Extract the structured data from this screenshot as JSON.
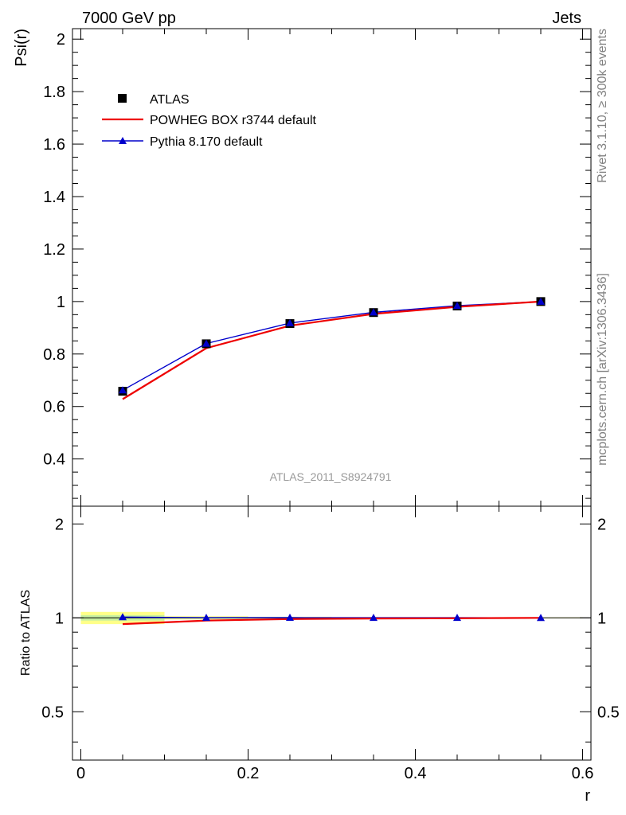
{
  "header": {
    "left": "7000 GeV pp",
    "right": "Jets"
  },
  "side_labels": {
    "top": "Rivet 3.1.10, ≥ 300k events",
    "bottom": "mcplots.cern.ch [arXiv:1306.3436]"
  },
  "watermark": "ATLAS_2011_S8924791",
  "colors": {
    "atlas": "#000000",
    "powheg": "#ee0000",
    "pythia": "#0000cc",
    "band_outer": "#ffff88",
    "band_inner": "#c8f0a0",
    "watermark": "#999999",
    "side_label": "#808080"
  },
  "chart_data": [
    {
      "type": "line",
      "ylabel": "Psi(r)",
      "xlim": [
        -0.01,
        0.61
      ],
      "ylim": [
        0.22,
        2.04
      ],
      "yticks": [
        0.4,
        0.6,
        0.8,
        1,
        1.2,
        1.4,
        1.6,
        1.8,
        2
      ],
      "ytick_labels": [
        "0.4",
        "0.6",
        "0.8",
        "1",
        "1.2",
        "1.4",
        "1.6",
        "1.8",
        "2"
      ],
      "legend_position": "top-left",
      "series": [
        {
          "name": "ATLAS",
          "marker": "square",
          "x": [
            0.05,
            0.15,
            0.25,
            0.35,
            0.45,
            0.55
          ],
          "y": [
            0.658,
            0.839,
            0.916,
            0.958,
            0.983,
            1.0
          ]
        },
        {
          "name": "POWHEG BOX r3744 default",
          "marker": "none",
          "x": [
            0.05,
            0.15,
            0.25,
            0.35,
            0.45,
            0.55
          ],
          "y": [
            0.628,
            0.822,
            0.908,
            0.953,
            0.98,
            1.0
          ]
        },
        {
          "name": "Pythia 8.170 default",
          "marker": "triangle",
          "x": [
            0.05,
            0.15,
            0.25,
            0.35,
            0.45,
            0.55
          ],
          "y": [
            0.662,
            0.84,
            0.918,
            0.959,
            0.984,
            1.0
          ]
        }
      ]
    },
    {
      "type": "line",
      "ylabel": "Ratio to ATLAS",
      "xlabel": "r",
      "xlim": [
        -0.01,
        0.61
      ],
      "ylim": [
        0.35,
        2.28
      ],
      "yscale": "log",
      "yticks": [
        0.5,
        1,
        2
      ],
      "ytick_labels": [
        "0.5",
        "1",
        "2"
      ],
      "xticks": [
        0,
        0.2,
        0.4,
        0.6
      ],
      "xtick_labels": [
        "0",
        "0.2",
        "0.4",
        "0.6"
      ],
      "reference": {
        "name": "ATLAS",
        "x_edges": [
          0,
          0.1,
          0.2,
          0.3,
          0.4,
          0.5,
          0.6
        ],
        "outer_halfwidth": [
          0.045,
          0.012,
          0.008,
          0.005,
          0.004,
          0.003
        ],
        "inner_halfwidth": [
          0.02,
          0.006,
          0.004,
          0.003,
          0.002,
          0.002
        ]
      },
      "series": [
        {
          "name": "POWHEG BOX r3744 default",
          "marker": "none",
          "x": [
            0.05,
            0.15,
            0.25,
            0.35,
            0.45,
            0.55
          ],
          "y": [
            0.955,
            0.98,
            0.991,
            0.995,
            0.997,
            1.0
          ]
        },
        {
          "name": "Pythia 8.170 default",
          "marker": "triangle",
          "x": [
            0.05,
            0.15,
            0.25,
            0.35,
            0.45,
            0.55
          ],
          "y": [
            1.006,
            1.001,
            1.002,
            1.001,
            1.001,
            1.0
          ]
        }
      ]
    }
  ]
}
